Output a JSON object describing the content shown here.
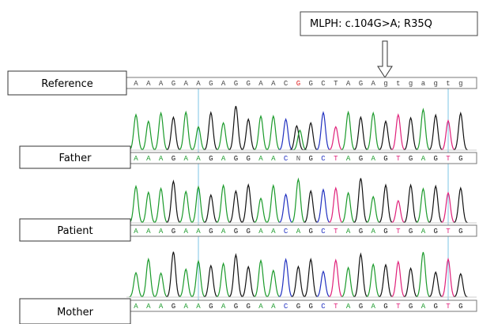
{
  "annotation": "MLPH: c.104G>A; R35Q",
  "rows": [
    {
      "label": "Reference",
      "bases": [
        "A",
        "A",
        "A",
        "G",
        "A",
        "A",
        "G",
        "A",
        "G",
        "G",
        "A",
        "A",
        "C",
        "G",
        "G",
        "C",
        "T",
        "A",
        "G",
        "A",
        "g",
        "t",
        "g",
        "a",
        "g",
        "t",
        "g"
      ]
    },
    {
      "label": "Father",
      "bases": [
        "A",
        "A",
        "A",
        "G",
        "A",
        "A",
        "G",
        "A",
        "G",
        "G",
        "A",
        "A",
        "C",
        "N",
        "G",
        "C",
        "T",
        "A",
        "G",
        "A",
        "G",
        "T",
        "G",
        "A",
        "G",
        "T",
        "G"
      ]
    },
    {
      "label": "Patient",
      "bases": [
        "A",
        "A",
        "A",
        "G",
        "A",
        "A",
        "G",
        "A",
        "G",
        "G",
        "A",
        "A",
        "C",
        "A",
        "G",
        "C",
        "T",
        "A",
        "G",
        "A",
        "G",
        "T",
        "G",
        "A",
        "G",
        "T",
        "G"
      ]
    },
    {
      "label": "Mother",
      "bases": [
        "A",
        "A",
        "A",
        "G",
        "A",
        "A",
        "G",
        "A",
        "G",
        "G",
        "A",
        "A",
        "C",
        "G",
        "G",
        "C",
        "T",
        "A",
        "G",
        "A",
        "G",
        "T",
        "G",
        "A",
        "G",
        "T",
        "G"
      ]
    }
  ]
}
